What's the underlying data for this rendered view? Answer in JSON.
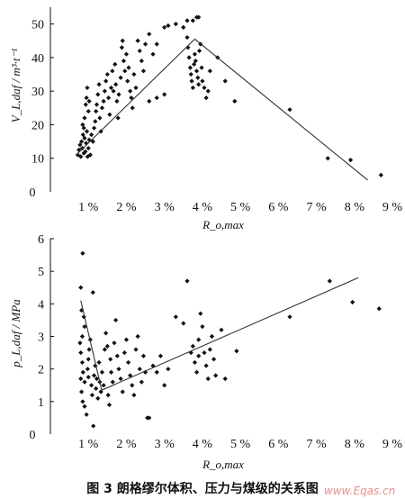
{
  "caption": "图 3   朗格缪尔体积、压力与煤级的关系图",
  "watermark": "www.Eqas.cn",
  "chart_data": [
    {
      "type": "scatter",
      "ylabel": "V_L,daf / m³·t⁻¹",
      "xlabel": "R_o,max",
      "xlim": [
        0,
        9
      ],
      "ylim": [
        0,
        55
      ],
      "x_ticks": [
        "0",
        "1 %",
        "2 %",
        "3 %",
        "4 %",
        "5 %",
        "6 %",
        "7 %",
        "8 %",
        "9 %"
      ],
      "y_ticks": [
        "10",
        "20",
        "30",
        "40",
        "50"
      ],
      "grid": false,
      "trend_lines": [
        [
          [
            0.68,
            11
          ],
          [
            3.8,
            45.5
          ],
          [
            8.35,
            3.5
          ]
        ]
      ],
      "points": [
        [
          0.72,
          11
        ],
        [
          0.75,
          12.5
        ],
        [
          0.78,
          14
        ],
        [
          0.8,
          10.5
        ],
        [
          0.82,
          15
        ],
        [
          0.84,
          13
        ],
        [
          0.86,
          17
        ],
        [
          0.88,
          11.5
        ],
        [
          0.9,
          16
        ],
        [
          0.92,
          12
        ],
        [
          0.94,
          14.5
        ],
        [
          0.96,
          18
        ],
        [
          0.98,
          10.5
        ],
        [
          1.0,
          13
        ],
        [
          1.02,
          15.5
        ],
        [
          1.05,
          11
        ],
        [
          1.08,
          17
        ],
        [
          0.85,
          20
        ],
        [
          0.9,
          22
        ],
        [
          0.93,
          26
        ],
        [
          0.95,
          28
        ],
        [
          0.97,
          31
        ],
        [
          1.0,
          24
        ],
        [
          1.02,
          27
        ],
        [
          0.88,
          19
        ],
        [
          1.12,
          15
        ],
        [
          1.15,
          19
        ],
        [
          1.18,
          21
        ],
        [
          1.2,
          24
        ],
        [
          1.22,
          26
        ],
        [
          1.25,
          29
        ],
        [
          1.28,
          32
        ],
        [
          1.3,
          22
        ],
        [
          1.33,
          18
        ],
        [
          1.36,
          25
        ],
        [
          1.4,
          27
        ],
        [
          1.43,
          30
        ],
        [
          1.46,
          33
        ],
        [
          1.5,
          35
        ],
        [
          1.53,
          28
        ],
        [
          1.56,
          23
        ],
        [
          1.6,
          31
        ],
        [
          1.63,
          36
        ],
        [
          1.66,
          30
        ],
        [
          1.7,
          38
        ],
        [
          1.72,
          32
        ],
        [
          1.75,
          27
        ],
        [
          1.78,
          22
        ],
        [
          1.8,
          29
        ],
        [
          1.85,
          34
        ],
        [
          1.88,
          43
        ],
        [
          1.9,
          45
        ],
        [
          1.93,
          39
        ],
        [
          1.96,
          36
        ],
        [
          2.0,
          41
        ],
        [
          2.03,
          33
        ],
        [
          2.06,
          37
        ],
        [
          2.1,
          30
        ],
        [
          2.13,
          28
        ],
        [
          2.16,
          25
        ],
        [
          2.2,
          35
        ],
        [
          2.25,
          31
        ],
        [
          2.3,
          45
        ],
        [
          2.35,
          42
        ],
        [
          2.4,
          39
        ],
        [
          2.45,
          36
        ],
        [
          2.5,
          44
        ],
        [
          2.6,
          47
        ],
        [
          2.7,
          41
        ],
        [
          2.8,
          44
        ],
        [
          3.0,
          49
        ],
        [
          3.1,
          49.5
        ],
        [
          3.3,
          50
        ],
        [
          3.5,
          49
        ],
        [
          3.6,
          51
        ],
        [
          3.75,
          51
        ],
        [
          3.85,
          52
        ],
        [
          3.9,
          52
        ],
        [
          3.6,
          46
        ],
        [
          3.62,
          43
        ],
        [
          3.65,
          40
        ],
        [
          3.68,
          37
        ],
        [
          3.7,
          35
        ],
        [
          3.72,
          33
        ],
        [
          3.75,
          31
        ],
        [
          3.78,
          38
        ],
        [
          3.8,
          41
        ],
        [
          3.82,
          39
        ],
        [
          3.85,
          36
        ],
        [
          3.88,
          34
        ],
        [
          3.9,
          32
        ],
        [
          3.92,
          42
        ],
        [
          3.95,
          44
        ],
        [
          3.98,
          37
        ],
        [
          4.0,
          33
        ],
        [
          4.05,
          31
        ],
        [
          4.1,
          28
        ],
        [
          4.15,
          30
        ],
        [
          4.2,
          36
        ],
        [
          4.4,
          40
        ],
        [
          4.6,
          33
        ],
        [
          4.85,
          27
        ],
        [
          6.3,
          24.5
        ],
        [
          7.3,
          10
        ],
        [
          7.9,
          9.5
        ],
        [
          8.7,
          5
        ],
        [
          2.6,
          27
        ],
        [
          2.8,
          28
        ],
        [
          3.0,
          29
        ]
      ]
    },
    {
      "type": "scatter",
      "ylabel": "p_L,daf / MPa",
      "xlabel": "R_o,max",
      "xlim": [
        0,
        9
      ],
      "ylim": [
        0,
        6
      ],
      "x_ticks": [
        "0",
        "1 %",
        "2 %",
        "3 %",
        "4 %",
        "5 %",
        "6 %",
        "7 %",
        "8 %",
        "9 %"
      ],
      "y_ticks": [
        "1",
        "2",
        "3",
        "4",
        "5",
        "6"
      ],
      "grid": false,
      "trend_lines": [
        [
          [
            0.8,
            4.1
          ],
          [
            1.35,
            1.35
          ],
          [
            8.1,
            4.8
          ]
        ]
      ],
      "points": [
        [
          0.85,
          5.55
        ],
        [
          0.8,
          4.5
        ],
        [
          0.82,
          3.8
        ],
        [
          0.88,
          3.6
        ],
        [
          0.9,
          3.3
        ],
        [
          0.84,
          3.0
        ],
        [
          0.78,
          2.8
        ],
        [
          0.8,
          2.5
        ],
        [
          0.84,
          2.2
        ],
        [
          0.86,
          1.9
        ],
        [
          0.8,
          1.7
        ],
        [
          0.9,
          1.6
        ],
        [
          0.82,
          1.3
        ],
        [
          0.85,
          1.0
        ],
        [
          0.9,
          0.85
        ],
        [
          0.95,
          0.6
        ],
        [
          0.98,
          2.0
        ],
        [
          1.0,
          2.3
        ],
        [
          1.02,
          2.6
        ],
        [
          1.05,
          2.9
        ],
        [
          1.08,
          1.5
        ],
        [
          1.1,
          1.2
        ],
        [
          1.12,
          4.35
        ],
        [
          1.15,
          1.8
        ],
        [
          1.18,
          2.1
        ],
        [
          1.2,
          1.4
        ],
        [
          1.22,
          1.7
        ],
        [
          1.25,
          1.1
        ],
        [
          1.28,
          2.2
        ],
        [
          1.3,
          1.6
        ],
        [
          1.33,
          1.3
        ],
        [
          1.36,
          1.9
        ],
        [
          1.4,
          1.5
        ],
        [
          1.43,
          2.6
        ],
        [
          1.46,
          3.1
        ],
        [
          1.5,
          2.7
        ],
        [
          1.52,
          1.2
        ],
        [
          1.55,
          0.9
        ],
        [
          1.58,
          2.3
        ],
        [
          1.6,
          1.9
        ],
        [
          1.64,
          1.6
        ],
        [
          1.68,
          2.8
        ],
        [
          1.72,
          3.5
        ],
        [
          1.76,
          2.4
        ],
        [
          1.8,
          2.0
        ],
        [
          1.85,
          1.7
        ],
        [
          1.9,
          1.3
        ],
        [
          1.95,
          2.5
        ],
        [
          2.0,
          2.9
        ],
        [
          2.05,
          2.2
        ],
        [
          2.1,
          1.8
        ],
        [
          2.15,
          1.5
        ],
        [
          2.2,
          1.2
        ],
        [
          2.25,
          2.6
        ],
        [
          2.3,
          3.0
        ],
        [
          2.35,
          2.0
        ],
        [
          2.4,
          1.6
        ],
        [
          2.45,
          2.4
        ],
        [
          2.5,
          1.9
        ],
        [
          2.55,
          0.5
        ],
        [
          2.6,
          0.5
        ],
        [
          2.7,
          2.1
        ],
        [
          2.8,
          1.9
        ],
        [
          2.9,
          2.4
        ],
        [
          3.0,
          1.5
        ],
        [
          3.1,
          2.0
        ],
        [
          3.3,
          3.6
        ],
        [
          3.5,
          3.4
        ],
        [
          3.6,
          4.7
        ],
        [
          3.7,
          2.5
        ],
        [
          3.75,
          2.7
        ],
        [
          3.8,
          2.2
        ],
        [
          3.85,
          1.9
        ],
        [
          3.9,
          2.9
        ],
        [
          3.95,
          3.7
        ],
        [
          4.0,
          3.3
        ],
        [
          4.05,
          2.5
        ],
        [
          4.1,
          2.1
        ],
        [
          4.15,
          1.7
        ],
        [
          4.2,
          2.6
        ],
        [
          4.25,
          3.0
        ],
        [
          4.3,
          2.3
        ],
        [
          4.35,
          1.8
        ],
        [
          4.5,
          3.2
        ],
        [
          4.6,
          1.7
        ],
        [
          4.9,
          2.55
        ],
        [
          6.3,
          3.6
        ],
        [
          7.35,
          4.7
        ],
        [
          7.95,
          4.05
        ],
        [
          8.65,
          3.85
        ],
        [
          1.13,
          0.25
        ],
        [
          1.0,
          1.75
        ],
        [
          3.9,
          2.4
        ]
      ]
    }
  ]
}
